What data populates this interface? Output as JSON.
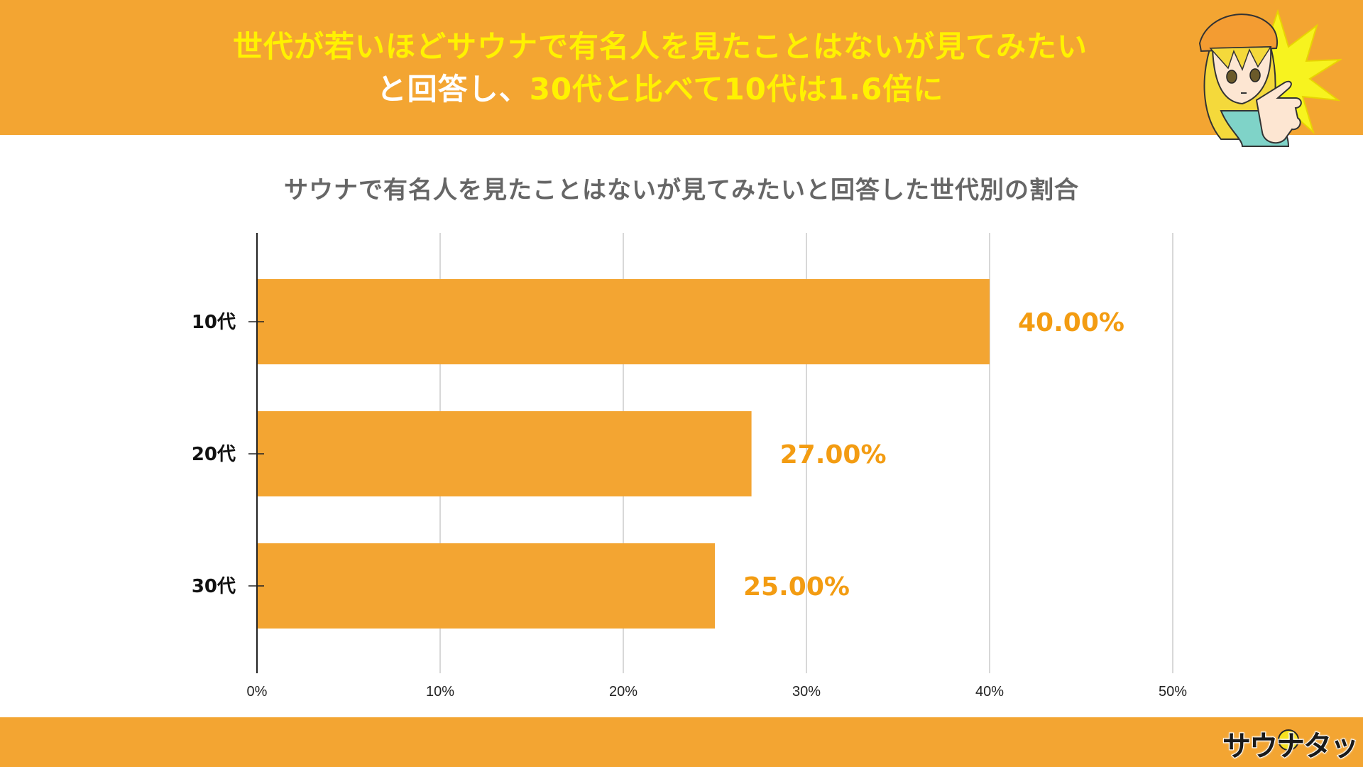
{
  "header": {
    "headline_part1": "世代が若いほどサウナで有名人を見たことはないが見てみたい",
    "headline_part2": "と回答し、",
    "headline_part3": "30代と比べて10代は1.6倍に"
  },
  "brand": {
    "logo_text": "サウナタッチ",
    "accent_color": "#f3a532",
    "headline_yellow": "#fff200",
    "label_color": "#f39c12"
  },
  "chart_data": {
    "type": "bar",
    "orientation": "horizontal",
    "title": "サウナで有名人を見たことはないが見てみたいと回答した世代別の割合",
    "categories": [
      "10代",
      "20代",
      "30代"
    ],
    "values": [
      40,
      27,
      25
    ],
    "value_labels": [
      "40.00%",
      "27.00%",
      "25.00%"
    ],
    "xlim": [
      0,
      50
    ],
    "x_ticks": [
      0,
      10,
      20,
      30,
      40,
      50
    ],
    "x_tick_labels": [
      "0%",
      "10%",
      "20%",
      "30%",
      "40%",
      "50%"
    ],
    "grid": true,
    "bar_color": "#f3a532"
  }
}
